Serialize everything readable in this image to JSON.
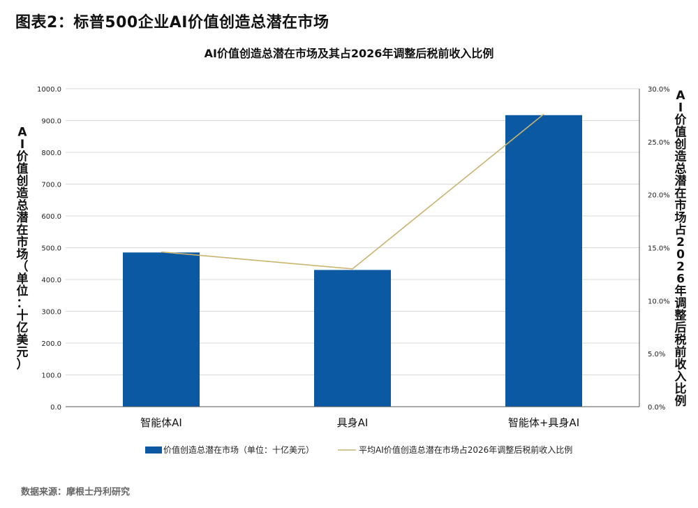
{
  "heading": "图表2：标普500企业AI价值创造总潜在市场",
  "source": "数据来源：摩根士丹利研究",
  "chart_data": {
    "type": "bar",
    "title": "AI价值创造总潜在市场及其占2026年调整后税前收入比例",
    "categories": [
      "智能体AI",
      "具身AI",
      "智能体+具身AI"
    ],
    "series": [
      {
        "name": "价值创造总潜在市场（单位：十亿美元）",
        "type": "bar",
        "axis": "left",
        "color": "#0b59a3",
        "values": [
          485,
          430,
          917
        ]
      },
      {
        "name": "平均AI价值创造总潜在市场占2026年调整后税前收入比例",
        "type": "line",
        "axis": "right",
        "color": "#c9b470",
        "values": [
          14.6,
          13.0,
          27.6
        ]
      }
    ],
    "ylabel": "AI价值创造总潜在市场（单位：十亿美元）",
    "y2label": "AI价值创造总潜在市场占2026年调整后税前收入比例",
    "ylim": [
      0,
      1000
    ],
    "y2lim": [
      0,
      30
    ],
    "yticks": [
      "0.0",
      "100.0",
      "200.0",
      "300.0",
      "400.0",
      "500.0",
      "600.0",
      "700.0",
      "800.0",
      "900.0",
      "1000.0"
    ],
    "y2ticks": [
      "0.0%",
      "5.0%",
      "10.0%",
      "15.0%",
      "20.0%",
      "25.0%",
      "30.0%"
    ],
    "grid": true,
    "legend": "bottom"
  }
}
